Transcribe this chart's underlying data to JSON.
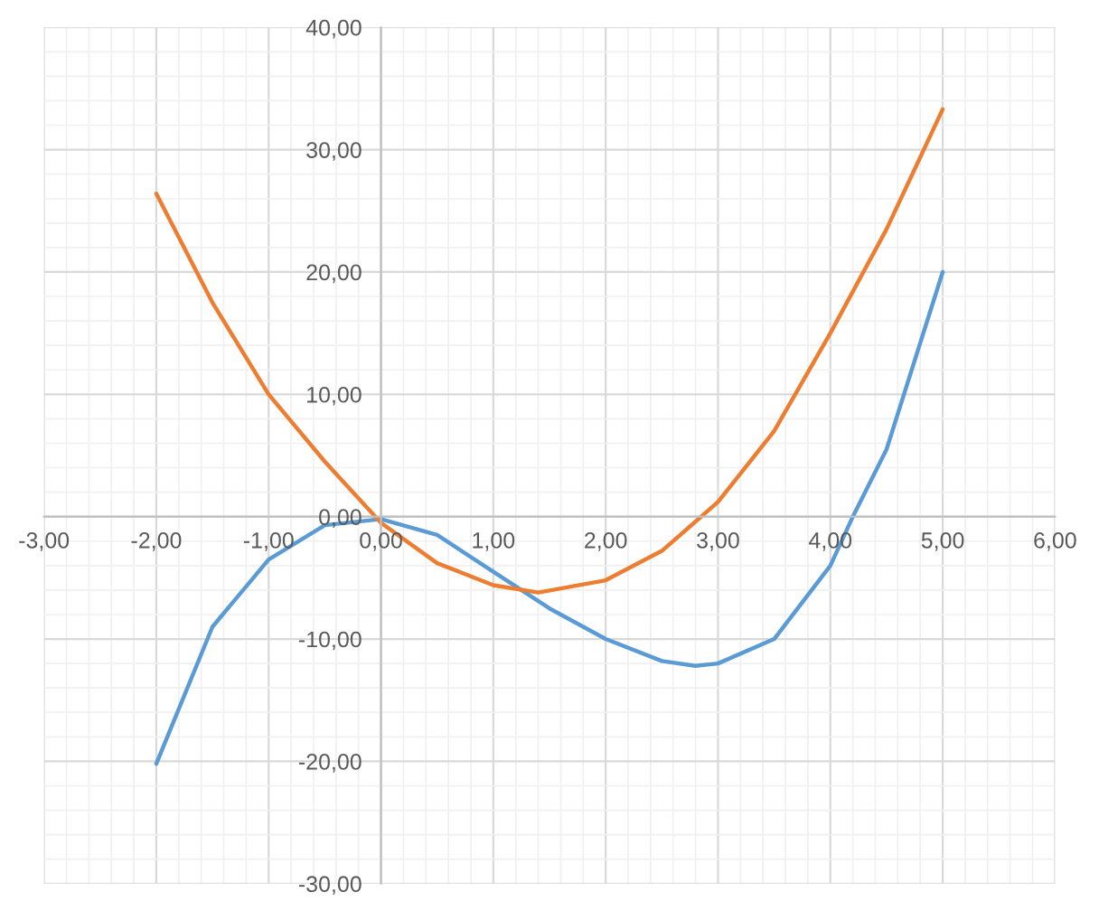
{
  "chart_data": {
    "type": "line",
    "marker": "none",
    "line_style": "solid",
    "grid": true,
    "legend": false,
    "series": [
      {
        "color": "#5b9bd5",
        "x": [
          -2,
          -1.5,
          -1,
          -0.5,
          0,
          0.5,
          1,
          1.5,
          2,
          2.5,
          2.8,
          3,
          3.5,
          4,
          4.2,
          4.5,
          5
        ],
        "values": [
          -20.2,
          -9,
          -3.5,
          -0.7,
          -0.2,
          -1.5,
          -4.5,
          -7.5,
          -10,
          -11.8,
          -12.2,
          -12,
          -10,
          -4,
          0,
          5.5,
          20
        ]
      },
      {
        "color": "#ed7d31",
        "x": [
          -2,
          -1.5,
          -1,
          -0.5,
          0,
          0.5,
          1,
          1.4,
          2,
          2.5,
          3,
          3.5,
          4,
          4.5,
          5
        ],
        "values": [
          26.4,
          17.5,
          10,
          4.5,
          -0.5,
          -3.8,
          -5.6,
          -6.2,
          -5.2,
          -2.8,
          1.2,
          7,
          15,
          23.5,
          33.3
        ]
      }
    ],
    "xlim": [
      -3,
      6
    ],
    "ylim": [
      -30,
      40
    ],
    "xticks": [
      {
        "value": -3,
        "label": "-3,00"
      },
      {
        "value": -2,
        "label": "-2,00"
      },
      {
        "value": -1,
        "label": "-1,00"
      },
      {
        "value": 0,
        "label": "0,00"
      },
      {
        "value": 1,
        "label": "1,00"
      },
      {
        "value": 2,
        "label": "2,00"
      },
      {
        "value": 3,
        "label": "3,00"
      },
      {
        "value": 4,
        "label": "4,00"
      },
      {
        "value": 5,
        "label": "5,00"
      },
      {
        "value": 6,
        "label": "6,00"
      }
    ],
    "yticks": [
      {
        "value": -30,
        "label": "-30,00"
      },
      {
        "value": -20,
        "label": "-20,00"
      },
      {
        "value": -10,
        "label": "-10,00"
      },
      {
        "value": 0,
        "label": "0,00"
      },
      {
        "value": 10,
        "label": "10,00"
      },
      {
        "value": 20,
        "label": "20,00"
      },
      {
        "value": 30,
        "label": "30,00"
      },
      {
        "value": 40,
        "label": "40,00"
      }
    ]
  }
}
